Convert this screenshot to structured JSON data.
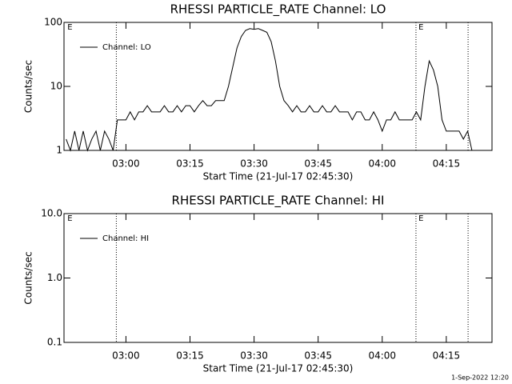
{
  "chart_data": [
    {
      "type": "line",
      "title": "RHESSI PARTICLE_RATE Channel: LO",
      "x_label": "Start Time (21-Jul-17 02:45:30)",
      "y_label": "Counts/sec",
      "x": [
        166,
        167,
        168,
        169,
        170,
        171,
        172,
        173,
        174,
        175,
        176,
        177,
        178,
        179,
        180,
        181,
        182,
        183,
        184,
        185,
        186,
        187,
        188,
        189,
        190,
        191,
        192,
        193,
        194,
        195,
        196,
        197,
        198,
        199,
        200,
        201,
        202,
        203,
        204,
        205,
        206,
        207,
        208,
        209,
        210,
        211,
        212,
        213,
        214,
        215,
        216,
        217,
        218,
        219,
        220,
        221,
        222,
        223,
        224,
        225,
        226,
        227,
        228,
        229,
        230,
        231,
        232,
        233,
        234,
        235,
        236,
        237,
        238,
        239,
        240,
        241,
        242,
        243,
        244,
        245,
        246,
        247,
        248,
        249,
        250,
        251,
        252,
        253,
        254,
        255,
        256,
        257,
        258,
        259,
        260,
        261,
        262,
        263
      ],
      "series": [
        {
          "name": "Channel: LO",
          "color": "#000000",
          "values": [
            1.5,
            1,
            2,
            1,
            2,
            1,
            1.5,
            2,
            1,
            2,
            1.5,
            1,
            3,
            3,
            3,
            4,
            3,
            4,
            4,
            5,
            4,
            4,
            4,
            5,
            4,
            4,
            5,
            4,
            5,
            5,
            4,
            5,
            6,
            5,
            5,
            6,
            6,
            6,
            10,
            20,
            40,
            60,
            75,
            80,
            78,
            80,
            75,
            70,
            50,
            25,
            10,
            6,
            5,
            4,
            5,
            4,
            4,
            5,
            4,
            4,
            5,
            4,
            4,
            5,
            4,
            4,
            4,
            3,
            4,
            4,
            3,
            3,
            4,
            3,
            2,
            3,
            3,
            4,
            3,
            3,
            3,
            3,
            4,
            3,
            10,
            25,
            18,
            10,
            3,
            2,
            2,
            2,
            2,
            1.5,
            2,
            1,
            1,
            1
          ]
        }
      ],
      "xlim": [
        165.5,
        265.7
      ],
      "xticks": [
        {
          "value": 180,
          "label": "03:00"
        },
        {
          "value": 195,
          "label": "03:15"
        },
        {
          "value": 210,
          "label": "03:30"
        },
        {
          "value": 225,
          "label": "03:45"
        },
        {
          "value": 240,
          "label": "04:00"
        },
        {
          "value": 255,
          "label": "04:15"
        }
      ],
      "ylim": [
        1,
        100
      ],
      "yticks": [
        1,
        10,
        100
      ],
      "log_y": true,
      "markers": [
        177.75,
        247.9,
        260.1
      ],
      "annotations": [
        {
          "text": "E",
          "x": 166.3
        },
        {
          "text": "E",
          "x": 248.5
        }
      ],
      "legend": "upper-left"
    },
    {
      "type": "line",
      "title": "RHESSI PARTICLE_RATE Channel: HI",
      "x_label": "Start Time (21-Jul-17 02:45:30)",
      "y_label": "Counts/sec",
      "x": [],
      "series": [
        {
          "name": "Channel: HI",
          "color": "#000000",
          "values": []
        }
      ],
      "xlim": [
        165.5,
        265.7
      ],
      "xticks": [
        {
          "value": 180,
          "label": "03:00"
        },
        {
          "value": 195,
          "label": "03:15"
        },
        {
          "value": 210,
          "label": "03:30"
        },
        {
          "value": 225,
          "label": "03:45"
        },
        {
          "value": 240,
          "label": "04:00"
        },
        {
          "value": 255,
          "label": "04:15"
        }
      ],
      "ylim": [
        0.1,
        10
      ],
      "yticks": [
        0.1,
        {
          "value": 1,
          "label": "1.0"
        },
        {
          "value": 10,
          "label": "10.0"
        }
      ],
      "log_y": true,
      "markers": [
        177.75,
        247.9,
        260.1
      ],
      "annotations": [
        {
          "text": "E",
          "x": 166.3
        },
        {
          "text": "E",
          "x": 248.5
        }
      ],
      "legend": "upper-left"
    }
  ],
  "footer": "1-Sep-2022 12:20"
}
